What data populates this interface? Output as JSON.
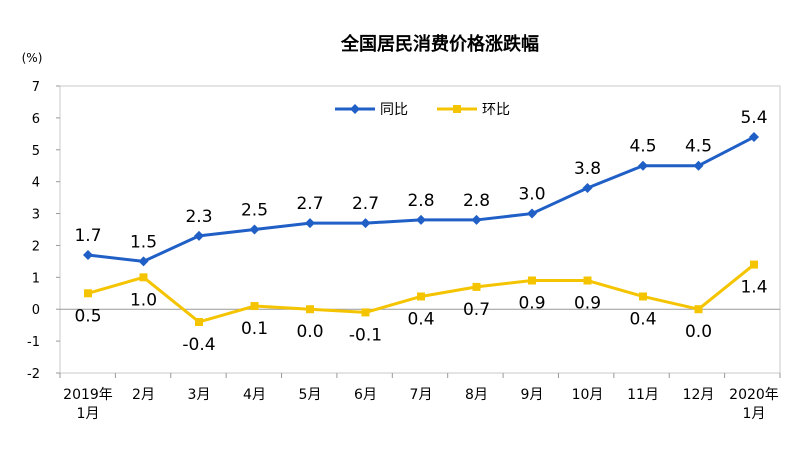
{
  "chart_data": {
    "type": "line",
    "title": "全国居民消费价格涨跌幅",
    "ylabel": "(%)",
    "ylim": [
      -2,
      7
    ],
    "yticks": [
      7,
      6,
      5,
      4,
      3,
      2,
      1,
      0,
      -1,
      -2
    ],
    "grid": false,
    "legend_position": "top-right",
    "categories": [
      [
        "2019年",
        "1月"
      ],
      [
        "2月"
      ],
      [
        "3月"
      ],
      [
        "4月"
      ],
      [
        "5月"
      ],
      [
        "6月"
      ],
      [
        "7月"
      ],
      [
        "8月"
      ],
      [
        "9月"
      ],
      [
        "10月"
      ],
      [
        "11月"
      ],
      [
        "12月"
      ],
      [
        "2020年",
        "1月"
      ]
    ],
    "series": [
      {
        "name": "同比",
        "color": "#1f5fc6",
        "marker": "diamond",
        "values": [
          1.7,
          1.5,
          2.3,
          2.5,
          2.7,
          2.7,
          2.8,
          2.8,
          3.0,
          3.8,
          4.5,
          4.5,
          5.4
        ],
        "labels": [
          "1.7",
          "1.5",
          "2.3",
          "2.5",
          "2.7",
          "2.7",
          "2.8",
          "2.8",
          "3.0",
          "3.8",
          "4.5",
          "4.5",
          "5.4"
        ]
      },
      {
        "name": "环比",
        "color": "#f5c400",
        "marker": "square",
        "values": [
          0.5,
          1.0,
          -0.4,
          0.1,
          0.0,
          -0.1,
          0.4,
          0.7,
          0.9,
          0.9,
          0.4,
          0.0,
          1.4
        ],
        "labels": [
          "0.5",
          "1.0",
          "-0.4",
          "0.1",
          "0.0",
          "-0.1",
          "0.4",
          "0.7",
          "0.9",
          "0.9",
          "0.4",
          "0.0",
          "1.4"
        ]
      }
    ]
  }
}
